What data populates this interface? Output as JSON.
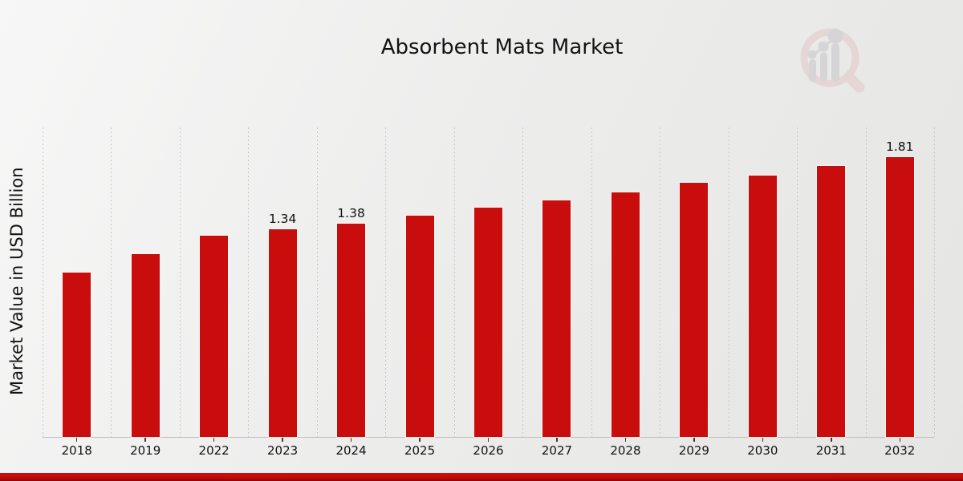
{
  "header": {
    "title": "Absorbent Mats Market"
  },
  "chart_data": {
    "type": "bar",
    "title": "Absorbent Mats Market",
    "xlabel": "",
    "ylabel": "Market Value in USD Billion",
    "ylim": [
      0,
      2.0
    ],
    "grid": "vertical-dotted",
    "legend": "none",
    "categories": [
      "2018",
      "2019",
      "2022",
      "2023",
      "2024",
      "2025",
      "2026",
      "2027",
      "2028",
      "2029",
      "2030",
      "2031",
      "2032"
    ],
    "values": [
      1.06,
      1.18,
      1.3,
      1.34,
      1.38,
      1.43,
      1.48,
      1.53,
      1.58,
      1.64,
      1.69,
      1.75,
      1.81
    ],
    "data_labels": {
      "2023": "1.34",
      "2024": "1.38",
      "2032": "1.81"
    }
  },
  "colors": {
    "bar": "#c90c0c",
    "gridline": "#c7c7c7",
    "banner": "#c20b0b",
    "banner_dark": "#8d0606",
    "text": "#141414",
    "watermark_pink": "#e3c4c4",
    "watermark_gray": "#c3c3c8"
  },
  "watermark": {
    "icon": "magnifier-bar-chart-logo"
  }
}
